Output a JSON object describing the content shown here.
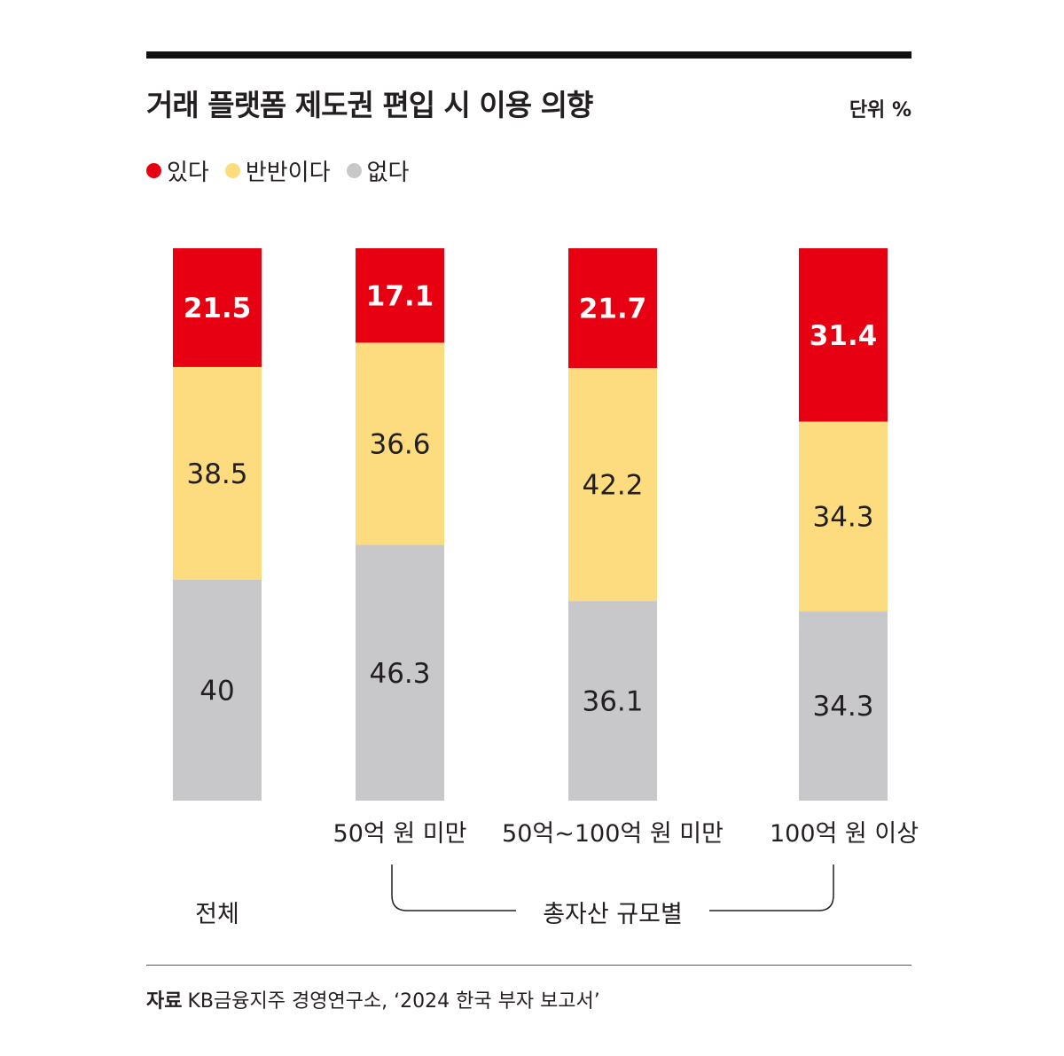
{
  "title": "거래 플랫폼 제도권 편입 시 이용 의향",
  "unit": "단위 %",
  "source": {
    "label": "자료",
    "text": "KB금융지주 경영연구소, ‘2024 한국 부자 보고서’"
  },
  "group_label_all": "전체",
  "group_label_assets": "총자산 규모별",
  "colors": {
    "yes": "#e60012",
    "half": "#fcdc7e",
    "no": "#c8c8ca"
  },
  "chart_data": {
    "type": "bar",
    "stacked": true,
    "categories": [
      "",
      "50억 원 미만",
      "50억~100억 원 미만",
      "100억 원 이상"
    ],
    "series": [
      {
        "name": "있다",
        "values": [
          21.5,
          17.1,
          21.7,
          31.4
        ]
      },
      {
        "name": "반반이다",
        "values": [
          38.5,
          36.6,
          42.2,
          34.3
        ]
      },
      {
        "name": "없다",
        "values": [
          40,
          46.3,
          36.1,
          34.3
        ]
      }
    ],
    "ylim": [
      0,
      100
    ],
    "grid": false,
    "legend": "top-left"
  }
}
